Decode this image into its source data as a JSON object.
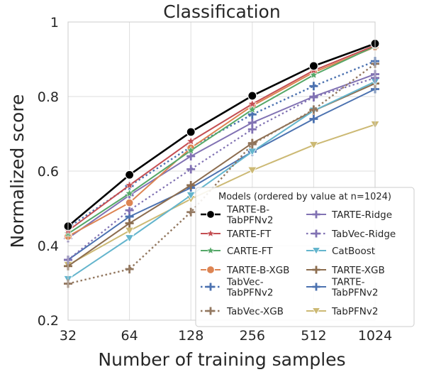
{
  "chart_data": {
    "type": "line",
    "title": "Classification",
    "xlabel": "Number of training samples",
    "ylabel": "Normalized score",
    "x_scale": "log2",
    "categories": [
      "32",
      "64",
      "128",
      "256",
      "512",
      "1024"
    ],
    "y_ticks": [
      "0.2",
      "0.4",
      "0.6",
      "0.8",
      "1"
    ],
    "ylim": [
      0.2,
      1.0
    ],
    "grid": true,
    "legend_title": "Models (ordered by value at n=1024)",
    "legend_position": "lower-right",
    "series": [
      {
        "name": "TARTE-B-\nTabPFNv2",
        "values": [
          0.452,
          0.59,
          0.705,
          0.802,
          0.882,
          0.942
        ],
        "color": "#000000",
        "marker": "circle",
        "dash": "solid",
        "width": 2.6
      },
      {
        "name": "TARTE-FT",
        "values": [
          0.44,
          0.562,
          0.68,
          0.78,
          0.87,
          0.937
        ],
        "color": "#c44e52",
        "marker": "star",
        "dash": "solid",
        "width": 2.0
      },
      {
        "name": "CARTE-FT",
        "values": [
          0.432,
          0.54,
          0.655,
          0.765,
          0.858,
          0.935
        ],
        "color": "#55a868",
        "marker": "star",
        "dash": "solid",
        "width": 2.0
      },
      {
        "name": "TARTE-B-XGB",
        "values": [
          0.425,
          0.515,
          0.662,
          0.775,
          0.865,
          0.933
        ],
        "color": "#dd8452",
        "marker": "circle",
        "dash": "solid",
        "width": 2.0
      },
      {
        "name": "TabVec-\nTabPFNv2",
        "values": [
          0.448,
          0.56,
          0.665,
          0.752,
          0.828,
          0.895
        ],
        "color": "#4c72b0",
        "marker": "plus",
        "dash": "dot",
        "width": 2.4
      },
      {
        "name": "TabVec-XGB",
        "values": [
          0.298,
          0.337,
          0.49,
          0.672,
          0.765,
          0.888
        ],
        "color": "#937860",
        "marker": "plus",
        "dash": "dot",
        "width": 2.4
      },
      {
        "name": "TARTE-Ridge",
        "values": [
          0.42,
          0.535,
          0.64,
          0.73,
          0.8,
          0.86
        ],
        "color": "#8172b3",
        "marker": "plus",
        "dash": "solid",
        "width": 2.0
      },
      {
        "name": "TabVec-Ridge",
        "values": [
          0.362,
          0.495,
          0.605,
          0.712,
          0.798,
          0.85
        ],
        "color": "#8172b3",
        "marker": "plus",
        "dash": "dot",
        "width": 2.2
      },
      {
        "name": "CatBoost",
        "values": [
          0.31,
          0.42,
          0.535,
          0.652,
          0.762,
          0.84
        ],
        "color": "#64b5cd",
        "marker": "tri-down",
        "dash": "solid",
        "width": 2.0
      },
      {
        "name": "TARTE-XGB",
        "values": [
          0.345,
          0.46,
          0.562,
          0.675,
          0.762,
          0.835
        ],
        "color": "#8c6d4f",
        "marker": "plus",
        "dash": "solid",
        "width": 2.0
      },
      {
        "name": "TARTE-\nTabPFNv2",
        "values": [
          0.362,
          0.478,
          0.555,
          0.652,
          0.74,
          0.82
        ],
        "color": "#4c72b0",
        "marker": "plus",
        "dash": "solid",
        "width": 2.0
      },
      {
        "name": "TabPFNv2",
        "values": [
          0.348,
          0.44,
          0.525,
          0.602,
          0.67,
          0.725
        ],
        "color": "#ccb974",
        "marker": "tri-down",
        "dash": "solid",
        "width": 2.0
      }
    ]
  }
}
